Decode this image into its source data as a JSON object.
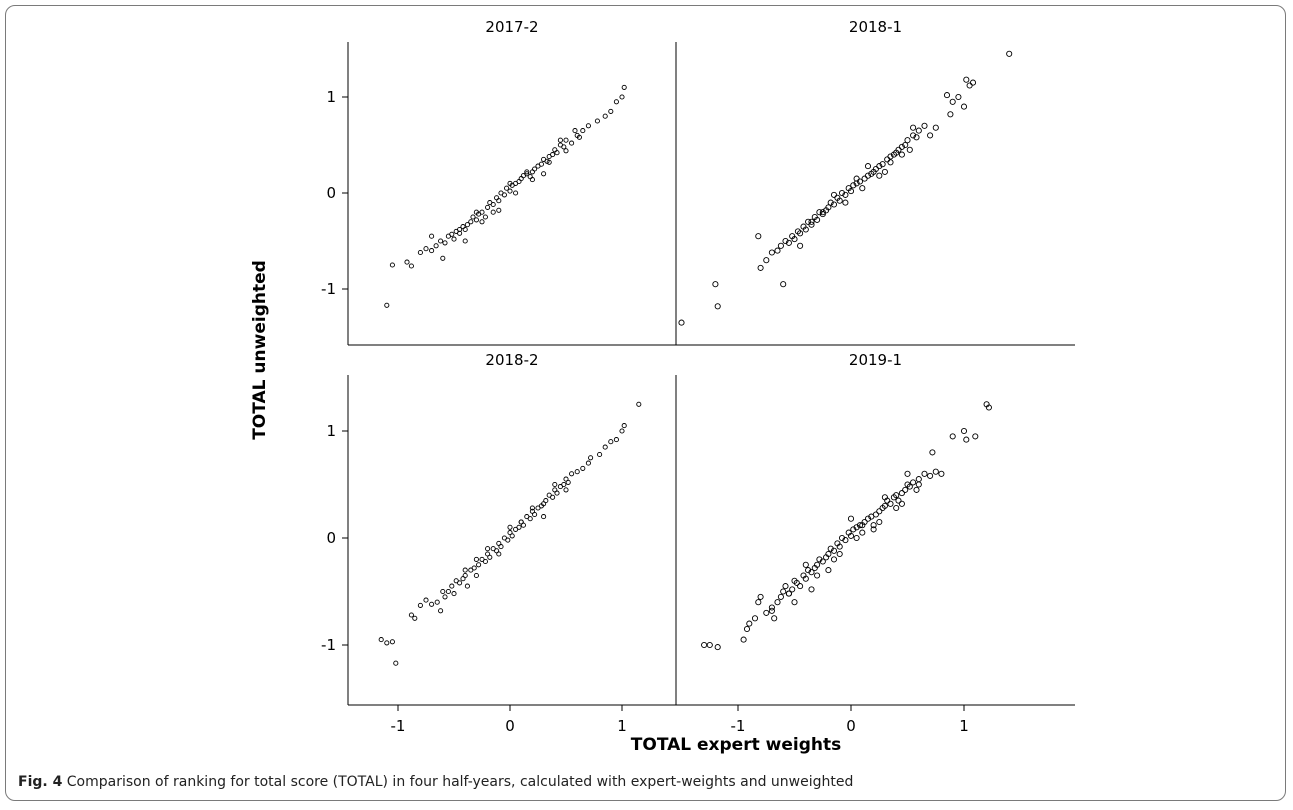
{
  "figure": {
    "caption_label": "Fig. 4",
    "caption_text": " Comparison of ranking for total score (TOTAL) in four half-years, calculated with expert-weights and unweighted"
  },
  "chart_data": {
    "type": "scatter",
    "xlabel": "TOTAL expert weights",
    "ylabel": "TOTAL unweighted",
    "xlim": [
      -1.5,
      1.5
    ],
    "ylim": [
      -1.5,
      1.5
    ],
    "x_ticks": [
      -1,
      0,
      1
    ],
    "y_ticks": [
      -1,
      0,
      1
    ],
    "x_tick_labels": [
      "-1",
      "0",
      "1"
    ],
    "y_tick_labels": [
      "-1",
      "0",
      "1"
    ],
    "grid": false,
    "layout": "2x2 panels with shared axes",
    "marker": "open circle",
    "color": "#000000",
    "panels": [
      {
        "title": "2017-2",
        "x": [
          -1.1,
          -1.05,
          -0.92,
          -0.88,
          -0.8,
          -0.75,
          -0.7,
          -0.66,
          -0.62,
          -0.58,
          -0.55,
          -0.52,
          -0.5,
          -0.48,
          -0.45,
          -0.42,
          -0.4,
          -0.38,
          -0.35,
          -0.33,
          -0.3,
          -0.28,
          -0.25,
          -0.22,
          -0.2,
          -0.18,
          -0.15,
          -0.12,
          -0.1,
          -0.08,
          -0.05,
          -0.03,
          0.0,
          0.02,
          0.05,
          0.08,
          0.1,
          0.12,
          0.15,
          0.18,
          0.2,
          0.22,
          0.25,
          0.28,
          0.3,
          0.33,
          0.35,
          0.38,
          0.4,
          0.42,
          0.45,
          0.48,
          0.5,
          0.55,
          0.6,
          0.65,
          0.7,
          0.78,
          0.85,
          0.9,
          0.95,
          1.0,
          1.02,
          -0.6,
          -0.4,
          -0.25,
          -0.1,
          0.05,
          0.2,
          0.35,
          0.5,
          0.62,
          -0.7,
          -0.45,
          -0.3,
          -0.15,
          0.0,
          0.15,
          0.3,
          0.45,
          0.58
        ],
        "y": [
          -1.17,
          -0.75,
          -0.72,
          -0.76,
          -0.62,
          -0.58,
          -0.6,
          -0.55,
          -0.5,
          -0.52,
          -0.45,
          -0.43,
          -0.48,
          -0.4,
          -0.42,
          -0.35,
          -0.38,
          -0.33,
          -0.3,
          -0.25,
          -0.28,
          -0.22,
          -0.2,
          -0.25,
          -0.15,
          -0.1,
          -0.12,
          -0.05,
          -0.08,
          0.0,
          -0.02,
          0.05,
          0.02,
          0.08,
          0.1,
          0.12,
          0.15,
          0.18,
          0.2,
          0.17,
          0.22,
          0.25,
          0.28,
          0.3,
          0.35,
          0.33,
          0.38,
          0.4,
          0.45,
          0.42,
          0.5,
          0.48,
          0.55,
          0.52,
          0.6,
          0.65,
          0.7,
          0.75,
          0.8,
          0.85,
          0.95,
          1.0,
          1.1,
          -0.68,
          -0.5,
          -0.3,
          -0.18,
          0.0,
          0.14,
          0.32,
          0.44,
          0.58,
          -0.45,
          -0.38,
          -0.2,
          -0.2,
          0.1,
          0.22,
          0.2,
          0.55,
          0.65
        ]
      },
      {
        "title": "2018-1",
        "x": [
          -1.5,
          -1.2,
          -1.18,
          -0.82,
          -0.8,
          -0.75,
          -0.7,
          -0.65,
          -0.62,
          -0.58,
          -0.55,
          -0.52,
          -0.5,
          -0.47,
          -0.45,
          -0.42,
          -0.4,
          -0.38,
          -0.35,
          -0.32,
          -0.3,
          -0.28,
          -0.25,
          -0.22,
          -0.2,
          -0.18,
          -0.15,
          -0.12,
          -0.1,
          -0.08,
          -0.05,
          -0.02,
          0.0,
          0.02,
          0.05,
          0.08,
          0.1,
          0.12,
          0.15,
          0.18,
          0.2,
          0.22,
          0.25,
          0.28,
          0.3,
          0.32,
          0.35,
          0.38,
          0.4,
          0.42,
          0.45,
          0.48,
          0.5,
          0.52,
          0.55,
          0.58,
          0.6,
          0.65,
          0.7,
          0.75,
          0.85,
          0.88,
          0.9,
          0.95,
          1.0,
          1.02,
          1.05,
          1.08,
          1.4,
          -0.6,
          -0.35,
          -0.15,
          0.05,
          0.25,
          0.45,
          -0.45,
          -0.25,
          -0.05,
          0.15,
          0.35,
          0.55
        ],
        "y": [
          -1.35,
          -0.95,
          -1.18,
          -0.45,
          -0.78,
          -0.7,
          -0.62,
          -0.6,
          -0.55,
          -0.5,
          -0.52,
          -0.45,
          -0.48,
          -0.4,
          -0.42,
          -0.35,
          -0.38,
          -0.3,
          -0.33,
          -0.25,
          -0.28,
          -0.2,
          -0.22,
          -0.18,
          -0.15,
          -0.1,
          -0.12,
          -0.05,
          -0.08,
          0.0,
          -0.02,
          0.05,
          0.02,
          0.08,
          0.1,
          0.12,
          0.05,
          0.15,
          0.18,
          0.2,
          0.22,
          0.25,
          0.28,
          0.3,
          0.22,
          0.35,
          0.38,
          0.4,
          0.42,
          0.45,
          0.48,
          0.5,
          0.55,
          0.45,
          0.6,
          0.58,
          0.65,
          0.7,
          0.6,
          0.68,
          1.02,
          0.82,
          0.95,
          1.0,
          0.9,
          1.18,
          1.12,
          1.15,
          1.45,
          -0.95,
          -0.3,
          -0.02,
          0.15,
          0.18,
          0.4,
          -0.55,
          -0.2,
          -0.1,
          0.28,
          0.32,
          0.68
        ]
      },
      {
        "title": "2018-2",
        "x": [
          -1.15,
          -1.1,
          -1.05,
          -1.02,
          -0.88,
          -0.85,
          -0.8,
          -0.75,
          -0.7,
          -0.65,
          -0.62,
          -0.58,
          -0.55,
          -0.52,
          -0.5,
          -0.48,
          -0.45,
          -0.42,
          -0.4,
          -0.38,
          -0.35,
          -0.32,
          -0.3,
          -0.28,
          -0.25,
          -0.22,
          -0.2,
          -0.18,
          -0.15,
          -0.12,
          -0.1,
          -0.08,
          -0.05,
          -0.02,
          0.0,
          0.02,
          0.05,
          0.08,
          0.1,
          0.12,
          0.15,
          0.18,
          0.2,
          0.22,
          0.25,
          0.28,
          0.3,
          0.32,
          0.35,
          0.38,
          0.4,
          0.42,
          0.45,
          0.48,
          0.5,
          0.52,
          0.55,
          0.6,
          0.65,
          0.7,
          0.72,
          0.8,
          0.85,
          0.9,
          0.95,
          1.0,
          1.02,
          1.15,
          -0.6,
          -0.4,
          -0.2,
          0.0,
          0.2,
          0.4,
          -0.3,
          -0.1,
          0.1,
          0.3,
          0.5
        ],
        "y": [
          -0.95,
          -0.98,
          -0.97,
          -1.17,
          -0.72,
          -0.75,
          -0.63,
          -0.58,
          -0.62,
          -0.6,
          -0.68,
          -0.55,
          -0.5,
          -0.45,
          -0.52,
          -0.4,
          -0.42,
          -0.38,
          -0.35,
          -0.45,
          -0.3,
          -0.28,
          -0.35,
          -0.25,
          -0.2,
          -0.22,
          -0.15,
          -0.18,
          -0.1,
          -0.12,
          -0.05,
          -0.08,
          0.0,
          -0.02,
          0.05,
          0.02,
          0.08,
          0.1,
          0.15,
          0.12,
          0.2,
          0.18,
          0.25,
          0.22,
          0.28,
          0.3,
          0.32,
          0.35,
          0.4,
          0.38,
          0.45,
          0.42,
          0.48,
          0.5,
          0.55,
          0.52,
          0.6,
          0.62,
          0.65,
          0.7,
          0.75,
          0.78,
          0.85,
          0.9,
          0.92,
          1.0,
          1.05,
          1.25,
          -0.5,
          -0.3,
          -0.1,
          0.1,
          0.28,
          0.5,
          -0.2,
          -0.15,
          0.15,
          0.2,
          0.45
        ]
      },
      {
        "title": "2019-1",
        "x": [
          -1.3,
          -1.25,
          -1.18,
          -0.95,
          -0.92,
          -0.9,
          -0.85,
          -0.82,
          -0.8,
          -0.75,
          -0.7,
          -0.68,
          -0.65,
          -0.62,
          -0.6,
          -0.58,
          -0.55,
          -0.52,
          -0.5,
          -0.48,
          -0.45,
          -0.42,
          -0.4,
          -0.38,
          -0.35,
          -0.32,
          -0.3,
          -0.28,
          -0.25,
          -0.22,
          -0.2,
          -0.18,
          -0.15,
          -0.12,
          -0.1,
          -0.08,
          -0.05,
          -0.02,
          0.0,
          0.02,
          0.05,
          0.08,
          0.1,
          0.12,
          0.15,
          0.18,
          0.2,
          0.22,
          0.25,
          0.28,
          0.3,
          0.32,
          0.35,
          0.38,
          0.4,
          0.42,
          0.45,
          0.48,
          0.5,
          0.52,
          0.55,
          0.58,
          0.6,
          0.65,
          0.7,
          0.72,
          0.75,
          0.8,
          0.9,
          1.0,
          1.02,
          1.1,
          1.2,
          1.22,
          -0.7,
          -0.5,
          -0.3,
          -0.1,
          0.1,
          0.3,
          0.5,
          -0.4,
          -0.2,
          0.0,
          0.2,
          0.4,
          0.6,
          -0.55,
          -0.35,
          -0.15,
          0.05,
          0.25,
          0.45
        ],
        "y": [
          -1.0,
          -1.0,
          -1.02,
          -0.95,
          -0.85,
          -0.8,
          -0.75,
          -0.6,
          -0.55,
          -0.7,
          -0.65,
          -0.75,
          -0.6,
          -0.55,
          -0.5,
          -0.45,
          -0.52,
          -0.48,
          -0.4,
          -0.42,
          -0.45,
          -0.35,
          -0.38,
          -0.3,
          -0.32,
          -0.28,
          -0.25,
          -0.2,
          -0.22,
          -0.18,
          -0.15,
          -0.1,
          -0.12,
          -0.05,
          -0.08,
          0.0,
          -0.02,
          0.05,
          0.02,
          0.08,
          0.1,
          0.12,
          0.05,
          0.15,
          0.18,
          0.2,
          0.12,
          0.22,
          0.25,
          0.28,
          0.3,
          0.35,
          0.32,
          0.38,
          0.4,
          0.35,
          0.42,
          0.45,
          0.5,
          0.48,
          0.52,
          0.45,
          0.55,
          0.6,
          0.58,
          0.8,
          0.62,
          0.6,
          0.95,
          1.0,
          0.92,
          0.95,
          1.25,
          1.22,
          -0.68,
          -0.6,
          -0.35,
          -0.15,
          0.12,
          0.38,
          0.6,
          -0.25,
          -0.3,
          0.18,
          0.08,
          0.28,
          0.5,
          -0.52,
          -0.48,
          -0.2,
          0.0,
          0.15,
          0.32
        ]
      }
    ]
  }
}
